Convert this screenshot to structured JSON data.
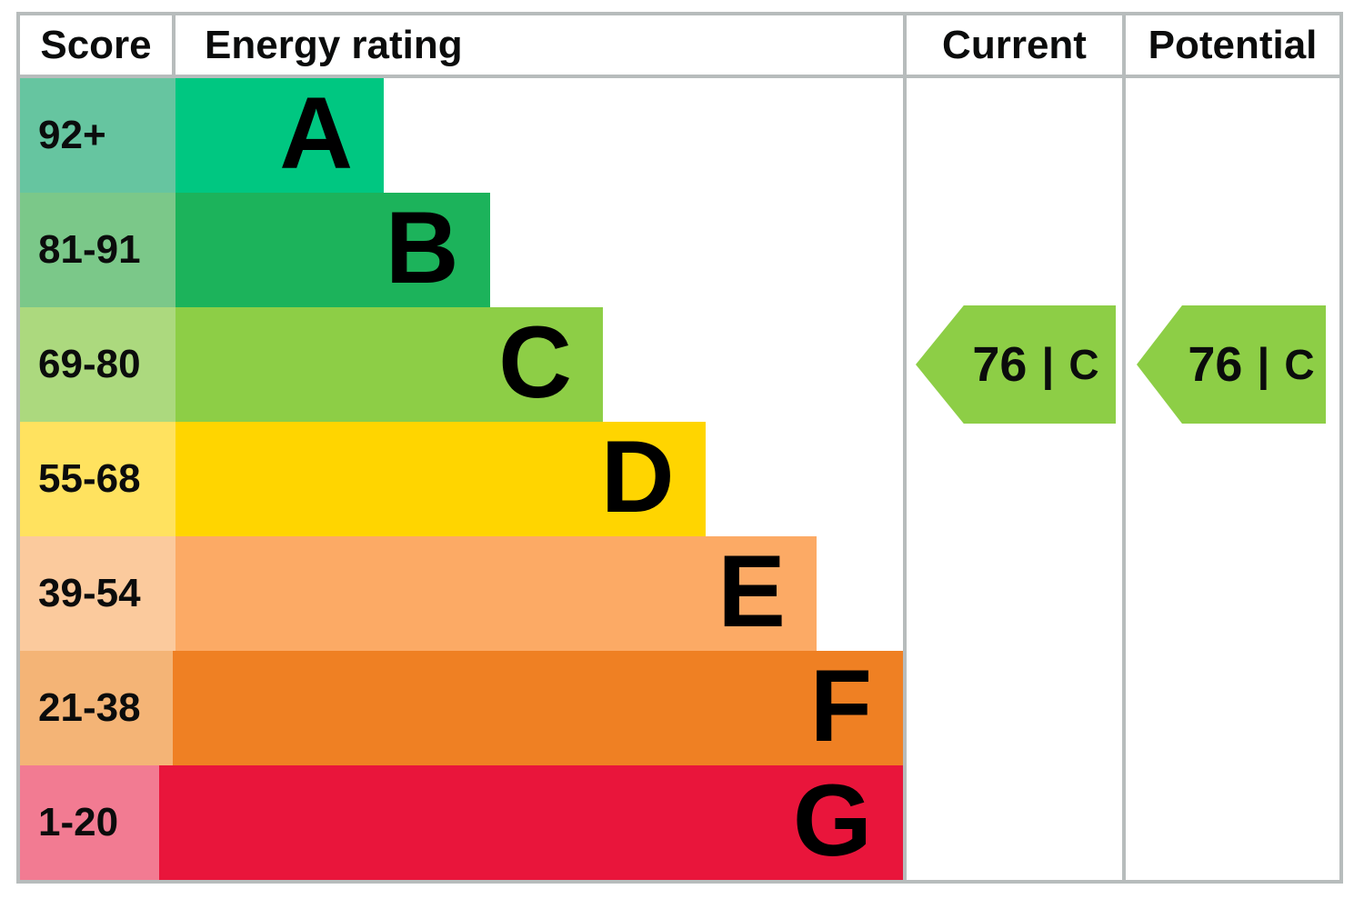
{
  "header": {
    "score": "Score",
    "rating": "Energy rating",
    "current": "Current",
    "potential": "Potential"
  },
  "chart_data": {
    "type": "epc-energy-rating-ladder",
    "title": "Energy rating",
    "columns": [
      "Score",
      "Energy rating",
      "Current",
      "Potential"
    ],
    "separator": "|",
    "bands": [
      {
        "score": "92+",
        "letter": "A",
        "color": "#00c781",
        "tint": "#66c5a0",
        "bar_width_pct": 23.6
      },
      {
        "score": "81-91",
        "letter": "B",
        "color": "#1cb35b",
        "tint": "#7bc889",
        "bar_width_pct": 35.6
      },
      {
        "score": "69-80",
        "letter": "C",
        "color": "#8dce46",
        "tint": "#acd97e",
        "bar_width_pct": 48.4
      },
      {
        "score": "55-68",
        "letter": "D",
        "color": "#ffd500",
        "tint": "#ffe25f",
        "bar_width_pct": 60.0
      },
      {
        "score": "39-54",
        "letter": "E",
        "color": "#fcaa65",
        "tint": "#fbca9d",
        "bar_width_pct": 72.6
      },
      {
        "score": "21-38",
        "letter": "F",
        "color": "#ef8023",
        "tint": "#f4b476",
        "bar_width_pct": 84.1
      },
      {
        "score": "1-20",
        "letter": "G",
        "color": "#e9153b",
        "tint": "#f27b92",
        "bar_width_pct": 95.5
      }
    ],
    "current": {
      "value": "76",
      "band": "C",
      "label": "76 | C",
      "color": "#8dce46",
      "band_index": 2
    },
    "potential": {
      "value": "76",
      "band": "C",
      "label": "76 | C",
      "color": "#8dce46",
      "band_index": 2
    }
  }
}
